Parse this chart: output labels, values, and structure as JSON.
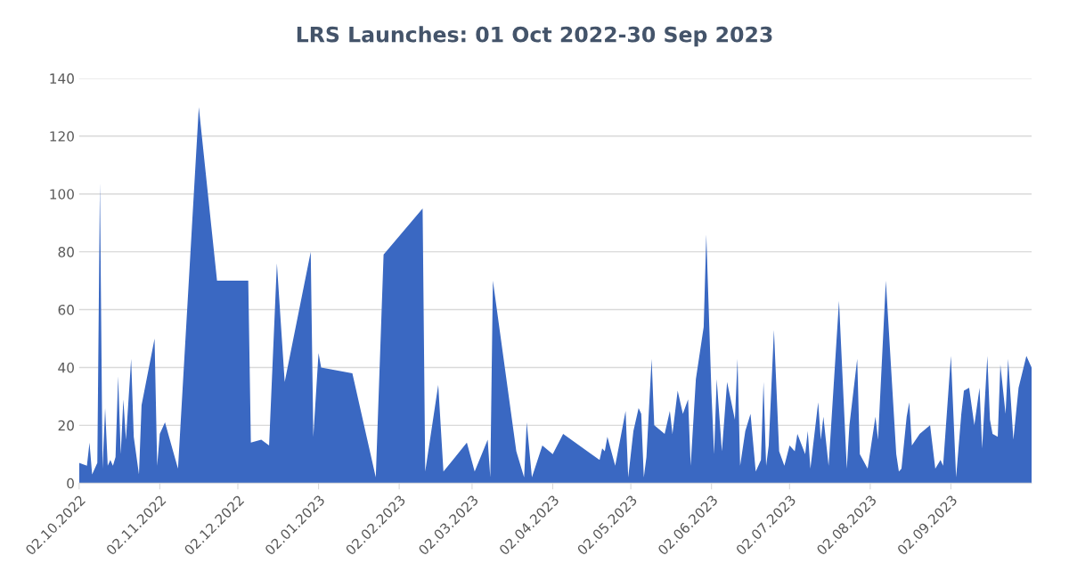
{
  "chart_data": {
    "type": "area",
    "title": "LRS Launches: 01 Oct 2022-30 Sep 2023",
    "x": [
      "2022-10-02",
      "2022-10-05",
      "2022-10-06",
      "2022-10-07",
      "2022-10-09",
      "2022-10-10",
      "2022-10-11",
      "2022-10-12",
      "2022-10-13",
      "2022-10-14",
      "2022-10-15",
      "2022-10-16",
      "2022-10-17",
      "2022-10-18",
      "2022-10-19",
      "2022-10-20",
      "2022-10-22",
      "2022-10-23",
      "2022-10-25",
      "2022-10-26",
      "2022-10-31",
      "2022-11-01",
      "2022-11-02",
      "2022-11-04",
      "2022-11-09",
      "2022-11-17",
      "2022-11-24",
      "2022-12-06",
      "2022-12-07",
      "2022-12-11",
      "2022-12-14",
      "2022-12-17",
      "2022-12-20",
      "2022-12-30",
      "2022-12-31",
      "2023-01-02",
      "2023-01-03",
      "2023-01-15",
      "2023-01-24",
      "2023-01-27",
      "2023-02-11",
      "2023-02-12",
      "2023-02-17",
      "2023-02-19",
      "2023-02-28",
      "2023-03-03",
      "2023-03-08",
      "2023-03-09",
      "2023-03-10",
      "2023-03-19",
      "2023-03-22",
      "2023-03-23",
      "2023-03-25",
      "2023-03-29",
      "2023-04-02",
      "2023-04-06",
      "2023-04-20",
      "2023-04-21",
      "2023-04-22",
      "2023-04-23",
      "2023-04-26",
      "2023-04-30",
      "2023-05-01",
      "2023-05-03",
      "2023-05-05",
      "2023-05-06",
      "2023-05-07",
      "2023-05-08",
      "2023-05-10",
      "2023-05-11",
      "2023-05-15",
      "2023-05-17",
      "2023-05-18",
      "2023-05-20",
      "2023-05-22",
      "2023-05-24",
      "2023-05-25",
      "2023-05-27",
      "2023-05-30",
      "2023-05-31",
      "2023-06-02",
      "2023-06-03",
      "2023-06-04",
      "2023-06-06",
      "2023-06-08",
      "2023-06-11",
      "2023-06-12",
      "2023-06-13",
      "2023-06-15",
      "2023-06-17",
      "2023-06-19",
      "2023-06-21",
      "2023-06-22",
      "2023-06-23",
      "2023-06-24",
      "2023-06-26",
      "2023-06-28",
      "2023-06-30",
      "2023-07-02",
      "2023-07-04",
      "2023-07-05",
      "2023-07-08",
      "2023-07-09",
      "2023-07-10",
      "2023-07-13",
      "2023-07-14",
      "2023-07-15",
      "2023-07-17",
      "2023-07-21",
      "2023-07-24",
      "2023-07-25",
      "2023-07-28",
      "2023-07-29",
      "2023-08-01",
      "2023-08-04",
      "2023-08-05",
      "2023-08-08",
      "2023-08-12",
      "2023-08-13",
      "2023-08-14",
      "2023-08-16",
      "2023-08-17",
      "2023-08-18",
      "2023-08-21",
      "2023-08-25",
      "2023-08-27",
      "2023-08-29",
      "2023-08-30",
      "2023-09-02",
      "2023-09-04",
      "2023-09-06",
      "2023-09-07",
      "2023-09-09",
      "2023-09-11",
      "2023-09-13",
      "2023-09-14",
      "2023-09-16",
      "2023-09-17",
      "2023-09-18",
      "2023-09-20",
      "2023-09-21",
      "2023-09-23",
      "2023-09-24",
      "2023-09-26",
      "2023-09-28",
      "2023-10-01",
      "2023-10-03"
    ],
    "values": [
      7,
      6,
      14,
      3,
      7,
      104,
      5,
      26,
      6,
      8,
      6,
      9,
      37,
      10,
      29,
      15,
      43,
      16,
      3,
      27,
      50,
      6,
      17,
      21,
      5,
      130,
      70,
      70,
      14,
      15,
      13,
      76,
      35,
      80,
      16,
      45,
      40,
      38,
      2,
      79,
      95,
      4,
      34,
      4,
      14,
      4,
      15,
      2,
      70,
      11,
      2,
      21,
      2,
      13,
      10,
      17,
      8,
      12,
      11,
      16,
      6,
      25,
      2,
      18,
      26,
      24,
      2,
      9,
      43,
      20,
      17,
      25,
      17,
      32,
      24,
      29,
      6,
      36,
      54,
      86,
      31,
      10,
      36,
      11,
      35,
      22,
      43,
      6,
      18,
      24,
      4,
      8,
      35,
      6,
      13,
      53,
      11,
      6,
      13,
      11,
      17,
      10,
      18,
      5,
      28,
      15,
      23,
      6,
      63,
      5,
      20,
      43,
      10,
      5,
      23,
      15,
      70,
      10,
      4,
      5,
      23,
      28,
      13,
      17,
      20,
      5,
      8,
      6,
      44,
      2,
      24,
      32,
      33,
      20,
      33,
      12,
      44,
      22,
      17,
      16,
      41,
      24,
      43,
      15,
      33,
      44,
      40
    ],
    "color": "#3a68c2",
    "xlim": [
      "2022-10-02",
      "2023-10-03"
    ],
    "xticks": [
      {
        "value": "2022-10-02",
        "label": "02.10.2022"
      },
      {
        "value": "2022-11-02",
        "label": "02.11.2022"
      },
      {
        "value": "2022-12-02",
        "label": "02.12.2022"
      },
      {
        "value": "2023-01-02",
        "label": "02.01.2023"
      },
      {
        "value": "2023-02-02",
        "label": "02.02.2023"
      },
      {
        "value": "2023-03-02",
        "label": "02.03.2023"
      },
      {
        "value": "2023-04-02",
        "label": "02.04.2023"
      },
      {
        "value": "2023-05-02",
        "label": "02.05.2023"
      },
      {
        "value": "2023-06-02",
        "label": "02.06.2023"
      },
      {
        "value": "2023-07-02",
        "label": "02.07.2023"
      },
      {
        "value": "2023-08-02",
        "label": "02.08.2023"
      },
      {
        "value": "2023-09-02",
        "label": "02.09.2023"
      }
    ],
    "ylim": [
      0,
      140
    ],
    "yticks": [
      0,
      20,
      40,
      60,
      80,
      100,
      120,
      140
    ],
    "grid": "y"
  }
}
